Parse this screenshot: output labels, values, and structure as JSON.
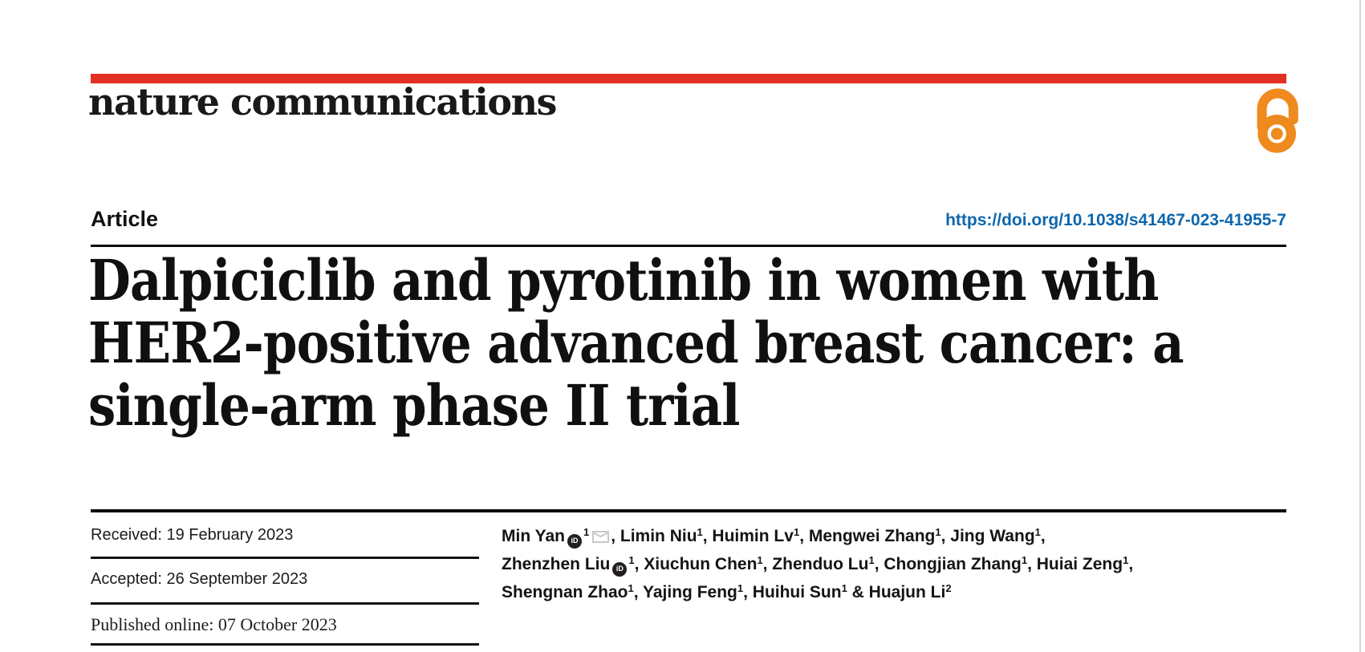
{
  "page": {
    "background": "#ffffff",
    "edge_line_color": "#d4d4d4"
  },
  "masthead": {
    "journal_name": "nature communications",
    "brand_bar_color": "#e23124",
    "open_access_icon": "open-lock-icon",
    "open_access_color": "#ef8a1e"
  },
  "article_header": {
    "type_label": "Article",
    "doi_link": "https://doi.org/10.1038/s41467-023-41955-7",
    "doi_color": "#0e67ae",
    "title_lines": [
      "Dalpiciclib and pyrotinib in women with",
      "HER2-positive advanced breast cancer: a",
      "single-arm phase II trial"
    ]
  },
  "dates": {
    "received": "Received: 19 February 2023",
    "accepted": "Accepted: 26 September 2023",
    "published": "Published online: 07 October 2023"
  },
  "authors": {
    "orcid_icon_color": "#231f20",
    "email_icon_color": "#c9c9c9",
    "lines": [
      [
        {
          "t": "Min Yan"
        },
        {
          "icon": "orcid"
        },
        {
          "sup": "1"
        },
        {
          "icon": "email"
        },
        {
          "t": ", Limin Niu"
        },
        {
          "sup": "1"
        },
        {
          "t": ", Huimin Lv"
        },
        {
          "sup": "1"
        },
        {
          "t": ", Mengwei Zhang"
        },
        {
          "sup": "1"
        },
        {
          "t": ", Jing Wang"
        },
        {
          "sup": "1"
        },
        {
          "t": ","
        }
      ],
      [
        {
          "t": "Zhenzhen Liu"
        },
        {
          "icon": "orcid"
        },
        {
          "sup": "1"
        },
        {
          "t": ", Xiuchun Chen"
        },
        {
          "sup": "1"
        },
        {
          "t": ", Zhenduo Lu"
        },
        {
          "sup": "1"
        },
        {
          "t": ", Chongjian Zhang"
        },
        {
          "sup": "1"
        },
        {
          "t": ", Huiai Zeng"
        },
        {
          "sup": "1"
        },
        {
          "t": ","
        }
      ],
      [
        {
          "t": "Shengnan Zhao"
        },
        {
          "sup": "1"
        },
        {
          "t": ", Yajing Feng"
        },
        {
          "sup": "1"
        },
        {
          "t": ", Huihui Sun"
        },
        {
          "sup": "1"
        },
        {
          "t": " & Huajun Li"
        },
        {
          "sup": "2"
        }
      ]
    ]
  }
}
